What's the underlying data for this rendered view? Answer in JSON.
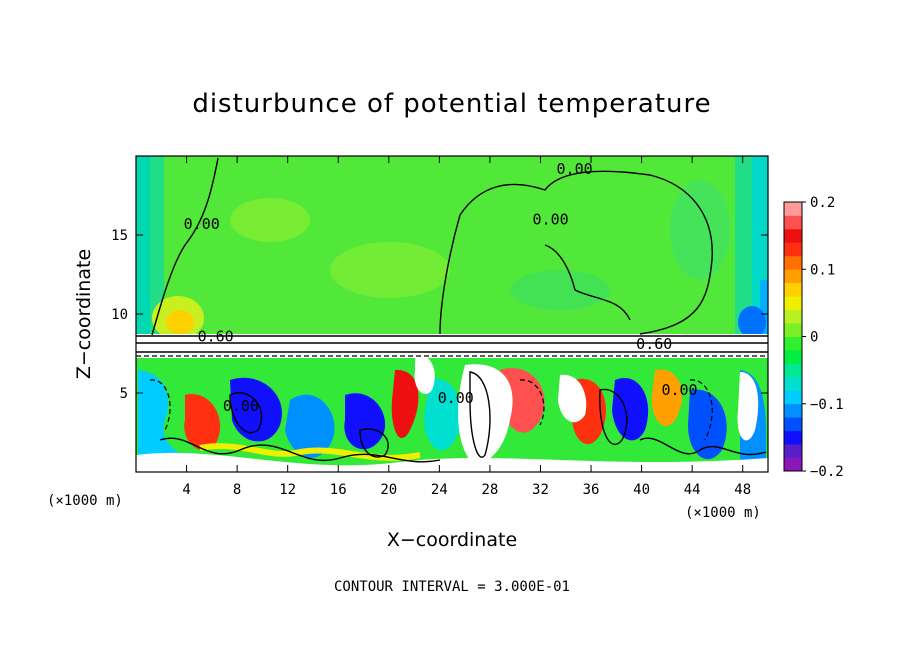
{
  "chart_data": {
    "type": "heatmap",
    "title": "disturbunce of potential temperature",
    "xlabel": "X−coordinate",
    "ylabel": "Z−coordinate",
    "x_unit": "(×1000 m)",
    "x_unit_right": "(×1000 m)",
    "footer": "CONTOUR INTERVAL = 3.000E-01",
    "xlim": [
      0,
      50
    ],
    "ylim": [
      0,
      20
    ],
    "x_ticks": [
      4,
      8,
      12,
      16,
      20,
      24,
      28,
      32,
      36,
      40,
      44,
      48
    ],
    "y_ticks": [
      5,
      10,
      15
    ],
    "contour_labels": [
      {
        "text": "0.00",
        "x": 34.7,
        "y": 19.0
      },
      {
        "text": "0.00",
        "x": 32.8,
        "y": 15.8
      },
      {
        "text": "0.00",
        "x": 5.2,
        "y": 15.5
      },
      {
        "text": "0.60",
        "x": 6.3,
        "y": 8.4
      },
      {
        "text": "0.60",
        "x": 41.0,
        "y": 7.9
      },
      {
        "text": "0.00",
        "x": 8.3,
        "y": 4.0
      },
      {
        "text": "0.00",
        "x": 25.3,
        "y": 4.5
      },
      {
        "text": "0.00",
        "x": 43.0,
        "y": 5.0
      }
    ],
    "colorbar": {
      "range": [
        -0.2,
        0.2
      ],
      "ticks": [
        "0.2",
        "0.1",
        "0",
        "−0.1",
        "−0.2"
      ],
      "tick_values": [
        0.2,
        0.1,
        0,
        -0.1,
        -0.2
      ],
      "colors": [
        "#8c17b8",
        "#5a1ec8",
        "#1010ff",
        "#0050ff",
        "#0090ff",
        "#00ccff",
        "#00e0d0",
        "#00e890",
        "#00ee40",
        "#30f030",
        "#7af028",
        "#b8f020",
        "#eef000",
        "#ffd000",
        "#ffa000",
        "#ff7000",
        "#ff3010",
        "#ee1010",
        "#ff5050",
        "#ff9a9a"
      ]
    }
  }
}
